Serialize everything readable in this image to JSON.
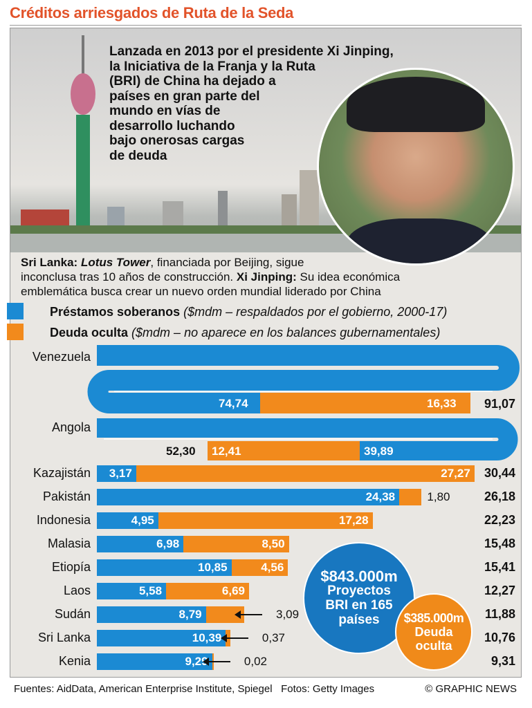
{
  "title": "Créditos arriesgados de Ruta de la Seda",
  "intro_lines": [
    "Lanzada en 2013 por el presidente Xi Jinping,",
    "la Iniciativa de la Franja y la Ruta",
    "(BRI) de China ha dejado a",
    "países en gran parte del",
    "mundo en vías de",
    "desarrollo luchando",
    "bajo onerosas cargas",
    "de deuda"
  ],
  "caption": {
    "l1_bold": "Sri Lanka:",
    "l1_italic": "Lotus Tower",
    "l1_rest": ", financiada por Beijing, sigue",
    "l2": "inconclusa tras 10 años de construcción.",
    "l2_bold": "Xi Jinping:",
    "l2_rest": "Su idea económica",
    "l3": "emblemática busca crear un nuevo orden mundial liderado por China"
  },
  "colors": {
    "sovereign": "#1b8ad3",
    "hidden": "#f28a1c",
    "title": "#e2532a"
  },
  "chart_data": {
    "type": "bar",
    "stacked": true,
    "orientation": "horizontal",
    "legend": [
      {
        "name": "Préstamos soberanos",
        "note": "($mdm – respaldados por el gobierno, 2000-17)"
      },
      {
        "name": "Deuda oculta",
        "note": "($mdm – no aparece en los balances gubernamentales)"
      }
    ],
    "categories": [
      "Venezuela",
      "Angola",
      "Kazajistán",
      "Pakistán",
      "Indonesia",
      "Malasia",
      "Etiopía",
      "Laos",
      "Sudán",
      "Sri Lanka",
      "Kenia"
    ],
    "series": [
      {
        "name": "Préstamos soberanos",
        "values": [
          74.74,
          39.89,
          3.17,
          24.38,
          4.95,
          6.98,
          10.85,
          5.58,
          8.79,
          10.39,
          9.29
        ],
        "labels": [
          "74,74",
          "39,89",
          "3,17",
          "24,38",
          "4,95",
          "6,98",
          "10,85",
          "5,58",
          "8,79",
          "10,39",
          "9,29"
        ]
      },
      {
        "name": "Deuda oculta",
        "values": [
          16.33,
          12.41,
          27.27,
          1.8,
          17.28,
          8.5,
          4.56,
          6.69,
          3.09,
          0.37,
          0.02
        ],
        "labels": [
          "16,33",
          "12,41",
          "27,27",
          "1,80",
          "17,28",
          "8,50",
          "4,56",
          "6,69",
          "3,09",
          "0,37",
          "0,02"
        ]
      }
    ],
    "totals": [
      "91,07",
      "52,30",
      "30,44",
      "26,18",
      "22,23",
      "15,48",
      "15,41",
      "12,27",
      "11,88",
      "10,76",
      "9,31"
    ],
    "callout_arrow": [
      false,
      false,
      false,
      false,
      false,
      false,
      false,
      false,
      true,
      true,
      true
    ]
  },
  "bubbles": {
    "total_amount": "$843.000m",
    "total_l1": "Proyectos",
    "total_l2": "BRI en 165",
    "total_l3": "países",
    "hidden_amount": "$385.000m",
    "hidden_l1": "Deuda",
    "hidden_l2": "oculta"
  },
  "footer": {
    "sources": "Fuentes: AidData, American Enterprise Institute, Spiegel",
    "photos": "Fotos: Getty Images",
    "credit": "© GRAPHIC NEWS"
  }
}
